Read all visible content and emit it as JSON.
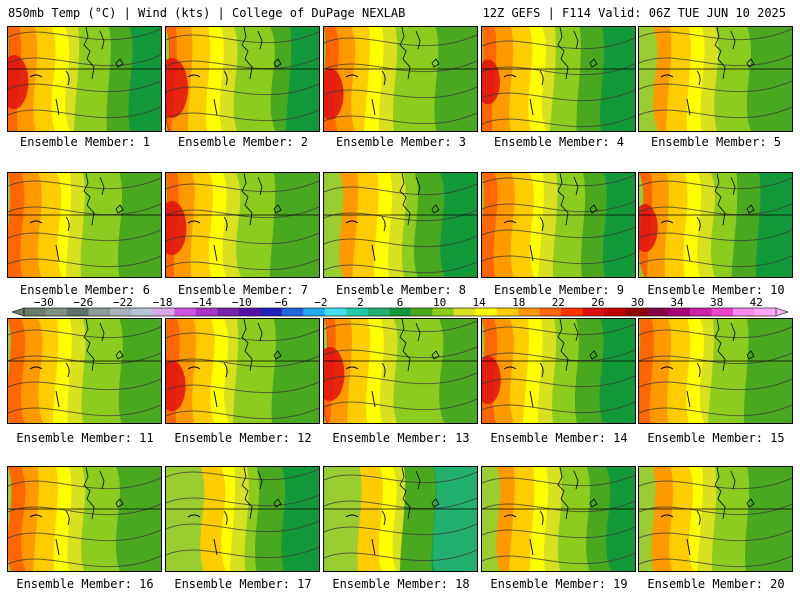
{
  "header": {
    "left": "850mb Temp (°C) | Wind (kts) | College of DuPage NEXLAB",
    "right": "12Z GEFS | F114 Valid: 06Z TUE JUN 10 2025"
  },
  "colors": {
    "colorbar": [
      "#6a7d6b",
      "#7f8f80",
      "#5e6e6a",
      "#8d9a9a",
      "#aab4b8",
      "#b8c4d8",
      "#d8a8e8",
      "#cc55dd",
      "#aa33cc",
      "#7722aa",
      "#5511aa",
      "#2222bb",
      "#2266dd",
      "#22aaee",
      "#44ddee",
      "#22ccaa",
      "#22b070",
      "#129a3a",
      "#4aa820",
      "#8ccc1e",
      "#d8e020",
      "#ffff00",
      "#ffcc00",
      "#ff9900",
      "#ff6600",
      "#ff3300",
      "#e01010",
      "#c00000",
      "#900000",
      "#880044",
      "#aa0077",
      "#cc22aa",
      "#ee44cc",
      "#ff88ee",
      "#ffaaff"
    ]
  },
  "chart_data": {
    "type": "heatmap",
    "title": "850mb Temp (°C) | Wind (kts)",
    "source": "College of DuPage NEXLAB",
    "model": "12Z GEFS",
    "forecast": "F114 Valid: 06Z TUE JUN 10 2025",
    "colorbar": {
      "unit": "°C",
      "tick_labels": [
        "−30",
        "−26",
        "−22",
        "−18",
        "−14",
        "−10",
        "−6",
        "−2",
        "2",
        "6",
        "10",
        "14",
        "18",
        "22",
        "26",
        "30",
        "34",
        "38",
        "42"
      ],
      "range": [
        -32,
        44
      ]
    },
    "members": [
      {
        "label": "Ensemble Member: 1",
        "member": 1
      },
      {
        "label": "Ensemble Member: 2",
        "member": 2
      },
      {
        "label": "Ensemble Member: 3",
        "member": 3
      },
      {
        "label": "Ensemble Member: 4",
        "member": 4
      },
      {
        "label": "Ensemble Member: 5",
        "member": 5
      },
      {
        "label": "Ensemble Member: 6",
        "member": 6
      },
      {
        "label": "Ensemble Member: 7",
        "member": 7
      },
      {
        "label": "Ensemble Member: 8",
        "member": 8
      },
      {
        "label": "Ensemble Member: 9",
        "member": 9
      },
      {
        "label": "Ensemble Member: 10",
        "member": 10
      },
      {
        "label": "Ensemble Member: 11",
        "member": 11
      },
      {
        "label": "Ensemble Member: 12",
        "member": 12
      },
      {
        "label": "Ensemble Member: 13",
        "member": 13
      },
      {
        "label": "Ensemble Member: 14",
        "member": 14
      },
      {
        "label": "Ensemble Member: 15",
        "member": 15
      },
      {
        "label": "Ensemble Member: 16",
        "member": 16
      },
      {
        "label": "Ensemble Member: 17",
        "member": 17
      },
      {
        "label": "Ensemble Member: 18",
        "member": 18
      },
      {
        "label": "Ensemble Member: 19",
        "member": 19
      },
      {
        "label": "Ensemble Member: 20",
        "member": 20
      }
    ]
  }
}
